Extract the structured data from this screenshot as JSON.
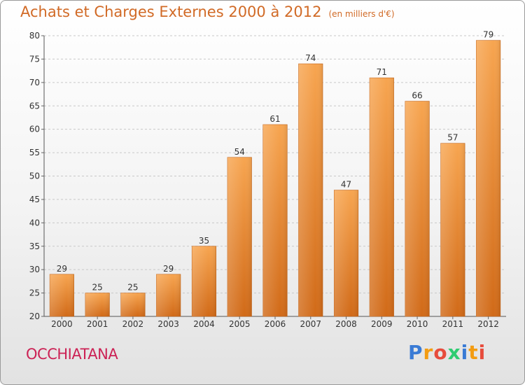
{
  "header": {
    "title": "Achats et Charges Externes 2000 à 2012",
    "subtitle": "(en milliers d'€)"
  },
  "footer": {
    "commune": "OCCHIATANA",
    "logo_text": [
      "P",
      "r",
      "o",
      "x",
      "i",
      "t",
      "i"
    ],
    "logo_colors": [
      "#3a7bd5",
      "#f39c12",
      "#e74c3c",
      "#2ecc71",
      "#3a7bd5",
      "#f39c12",
      "#e74c3c"
    ]
  },
  "chart_data": {
    "type": "bar",
    "title": "Achats et Charges Externes 2000 à 2012",
    "xlabel": "",
    "ylabel": "",
    "categories": [
      "2000",
      "2001",
      "2002",
      "2003",
      "2004",
      "2005",
      "2006",
      "2007",
      "2008",
      "2009",
      "2010",
      "2011",
      "2012"
    ],
    "values": [
      29,
      25,
      25,
      29,
      35,
      54,
      61,
      74,
      47,
      71,
      66,
      57,
      79
    ],
    "ylim": [
      20,
      80
    ],
    "yticks": [
      20,
      25,
      30,
      35,
      40,
      45,
      50,
      55,
      60,
      65,
      70,
      75,
      80
    ],
    "grid": true,
    "bar_color": "#f0923c",
    "bar_color_dark": "#d9701c"
  }
}
